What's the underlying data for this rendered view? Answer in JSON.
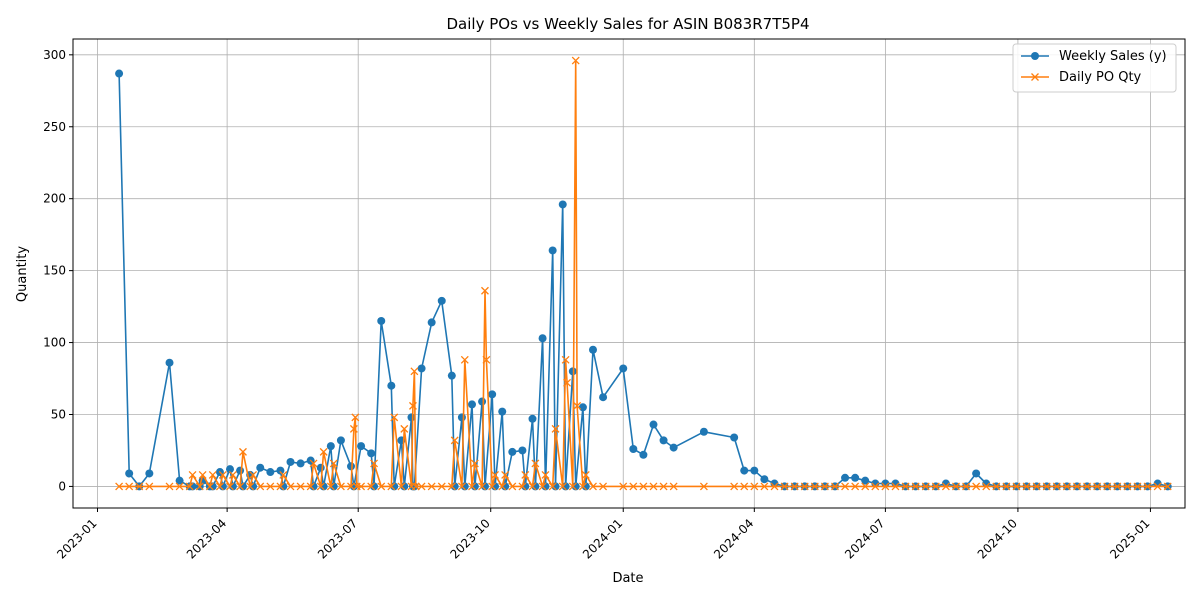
{
  "chart_data": {
    "type": "line",
    "title": "Daily POs vs Weekly Sales for ASIN B083R7T5P4",
    "xlabel": "Date",
    "ylabel": "Quantity",
    "xlim": [
      "2022-12-15",
      "2025-01-25"
    ],
    "ylim": [
      -15,
      311
    ],
    "x_ticks": [
      {
        "date": "2023-01-01",
        "label": "2023-01"
      },
      {
        "date": "2023-04-01",
        "label": "2023-04"
      },
      {
        "date": "2023-07-01",
        "label": "2023-07"
      },
      {
        "date": "2023-10-01",
        "label": "2023-10"
      },
      {
        "date": "2024-01-01",
        "label": "2024-01"
      },
      {
        "date": "2024-04-01",
        "label": "2024-04"
      },
      {
        "date": "2024-07-01",
        "label": "2024-07"
      },
      {
        "date": "2024-10-01",
        "label": "2024-10"
      },
      {
        "date": "2025-01-01",
        "label": "2025-01"
      }
    ],
    "y_ticks": [
      0,
      50,
      100,
      150,
      200,
      250,
      300
    ],
    "grid": true,
    "legend_position": "top-right",
    "colors": {
      "weekly_sales": "#1f77b4",
      "daily_po": "#ff7f0e"
    },
    "series": [
      {
        "name": "Weekly Sales (y)",
        "marker": "circle",
        "points": [
          [
            "2023-01-16",
            287
          ],
          [
            "2023-01-23",
            9
          ],
          [
            "2023-01-30",
            0
          ],
          [
            "2023-02-06",
            9
          ],
          [
            "2023-02-20",
            86
          ],
          [
            "2023-02-27",
            4
          ],
          [
            "2023-03-06",
            0
          ],
          [
            "2023-03-08",
            0
          ],
          [
            "2023-03-13",
            0
          ],
          [
            "2023-03-15",
            4
          ],
          [
            "2023-03-20",
            0
          ],
          [
            "2023-03-22",
            0
          ],
          [
            "2023-03-27",
            10
          ],
          [
            "2023-03-29",
            0
          ],
          [
            "2023-04-03",
            12
          ],
          [
            "2023-04-05",
            0
          ],
          [
            "2023-04-10",
            11
          ],
          [
            "2023-04-12",
            0
          ],
          [
            "2023-04-17",
            8
          ],
          [
            "2023-04-19",
            0
          ],
          [
            "2023-04-24",
            13
          ],
          [
            "2023-05-01",
            10
          ],
          [
            "2023-05-08",
            11
          ],
          [
            "2023-05-10",
            0
          ],
          [
            "2023-05-15",
            17
          ],
          [
            "2023-05-22",
            16
          ],
          [
            "2023-05-29",
            18
          ],
          [
            "2023-05-31",
            0
          ],
          [
            "2023-06-05",
            13
          ],
          [
            "2023-06-07",
            0
          ],
          [
            "2023-06-12",
            28
          ],
          [
            "2023-06-14",
            0
          ],
          [
            "2023-06-19",
            32
          ],
          [
            "2023-06-26",
            14
          ],
          [
            "2023-06-28",
            0
          ],
          [
            "2023-07-03",
            28
          ],
          [
            "2023-07-10",
            23
          ],
          [
            "2023-07-12",
            0
          ],
          [
            "2023-07-17",
            115
          ],
          [
            "2023-07-24",
            70
          ],
          [
            "2023-07-26",
            0
          ],
          [
            "2023-07-31",
            32
          ],
          [
            "2023-08-02",
            0
          ],
          [
            "2023-08-07",
            48
          ],
          [
            "2023-08-08",
            0
          ],
          [
            "2023-08-09",
            0
          ],
          [
            "2023-08-14",
            82
          ],
          [
            "2023-08-21",
            114
          ],
          [
            "2023-08-28",
            129
          ],
          [
            "2023-09-04",
            77
          ],
          [
            "2023-09-06",
            0
          ],
          [
            "2023-09-11",
            48
          ],
          [
            "2023-09-13",
            0
          ],
          [
            "2023-09-18",
            57
          ],
          [
            "2023-09-20",
            0
          ],
          [
            "2023-09-25",
            59
          ],
          [
            "2023-09-27",
            0
          ],
          [
            "2023-10-02",
            64
          ],
          [
            "2023-10-04",
            0
          ],
          [
            "2023-10-09",
            52
          ],
          [
            "2023-10-11",
            0
          ],
          [
            "2023-10-16",
            24
          ],
          [
            "2023-10-23",
            25
          ],
          [
            "2023-10-25",
            0
          ],
          [
            "2023-10-30",
            47
          ],
          [
            "2023-11-01",
            0
          ],
          [
            "2023-11-06",
            103
          ],
          [
            "2023-11-08",
            0
          ],
          [
            "2023-11-13",
            164
          ],
          [
            "2023-11-15",
            0
          ],
          [
            "2023-11-20",
            196
          ],
          [
            "2023-11-22",
            0
          ],
          [
            "2023-11-27",
            80
          ],
          [
            "2023-11-29",
            0
          ],
          [
            "2023-12-04",
            55
          ],
          [
            "2023-12-06",
            0
          ],
          [
            "2023-12-11",
            95
          ],
          [
            "2023-12-18",
            62
          ],
          [
            "2024-01-01",
            82
          ],
          [
            "2024-01-08",
            26
          ],
          [
            "2024-01-15",
            22
          ],
          [
            "2024-01-22",
            43
          ],
          [
            "2024-01-29",
            32
          ],
          [
            "2024-02-05",
            27
          ],
          [
            "2024-02-26",
            38
          ],
          [
            "2024-03-18",
            34
          ],
          [
            "2024-03-25",
            11
          ],
          [
            "2024-04-01",
            11
          ],
          [
            "2024-04-08",
            5
          ],
          [
            "2024-04-15",
            2
          ],
          [
            "2024-04-22",
            0
          ],
          [
            "2024-04-29",
            0
          ],
          [
            "2024-05-06",
            0
          ],
          [
            "2024-05-13",
            0
          ],
          [
            "2024-05-20",
            0
          ],
          [
            "2024-05-27",
            0
          ],
          [
            "2024-06-03",
            6
          ],
          [
            "2024-06-10",
            6
          ],
          [
            "2024-06-17",
            4
          ],
          [
            "2024-06-24",
            2
          ],
          [
            "2024-07-01",
            2
          ],
          [
            "2024-07-08",
            2
          ],
          [
            "2024-07-15",
            0
          ],
          [
            "2024-07-22",
            0
          ],
          [
            "2024-07-29",
            0
          ],
          [
            "2024-08-05",
            0
          ],
          [
            "2024-08-12",
            2
          ],
          [
            "2024-08-19",
            0
          ],
          [
            "2024-08-26",
            0
          ],
          [
            "2024-09-02",
            9
          ],
          [
            "2024-09-09",
            2
          ],
          [
            "2024-09-16",
            0
          ],
          [
            "2024-09-23",
            0
          ],
          [
            "2024-09-30",
            0
          ],
          [
            "2024-10-07",
            0
          ],
          [
            "2024-10-14",
            0
          ],
          [
            "2024-10-21",
            0
          ],
          [
            "2024-10-28",
            0
          ],
          [
            "2024-11-04",
            0
          ],
          [
            "2024-11-11",
            0
          ],
          [
            "2024-11-18",
            0
          ],
          [
            "2024-11-25",
            0
          ],
          [
            "2024-12-02",
            0
          ],
          [
            "2024-12-09",
            0
          ],
          [
            "2024-12-16",
            0
          ],
          [
            "2024-12-23",
            0
          ],
          [
            "2024-12-30",
            0
          ],
          [
            "2025-01-06",
            2
          ],
          [
            "2025-01-13",
            0
          ]
        ]
      },
      {
        "name": "Daily PO Qty",
        "marker": "x",
        "points": [
          [
            "2023-01-16",
            0
          ],
          [
            "2023-01-23",
            0
          ],
          [
            "2023-01-30",
            0
          ],
          [
            "2023-02-06",
            0
          ],
          [
            "2023-02-20",
            0
          ],
          [
            "2023-02-27",
            0
          ],
          [
            "2023-03-06",
            0
          ],
          [
            "2023-03-08",
            8
          ],
          [
            "2023-03-13",
            0
          ],
          [
            "2023-03-15",
            8
          ],
          [
            "2023-03-20",
            0
          ],
          [
            "2023-03-22",
            8
          ],
          [
            "2023-03-27",
            0
          ],
          [
            "2023-03-29",
            8
          ],
          [
            "2023-04-03",
            0
          ],
          [
            "2023-04-05",
            8
          ],
          [
            "2023-04-10",
            0
          ],
          [
            "2023-04-12",
            24
          ],
          [
            "2023-04-17",
            0
          ],
          [
            "2023-04-19",
            8
          ],
          [
            "2023-04-24",
            0
          ],
          [
            "2023-05-01",
            0
          ],
          [
            "2023-05-08",
            0
          ],
          [
            "2023-05-10",
            8
          ],
          [
            "2023-05-15",
            0
          ],
          [
            "2023-05-22",
            0
          ],
          [
            "2023-05-29",
            0
          ],
          [
            "2023-05-31",
            16
          ],
          [
            "2023-06-05",
            0
          ],
          [
            "2023-06-07",
            24
          ],
          [
            "2023-06-12",
            0
          ],
          [
            "2023-06-14",
            16
          ],
          [
            "2023-06-19",
            0
          ],
          [
            "2023-06-26",
            0
          ],
          [
            "2023-06-28",
            40
          ],
          [
            "2023-06-29",
            48
          ],
          [
            "2023-06-30",
            0
          ],
          [
            "2023-07-03",
            0
          ],
          [
            "2023-07-10",
            0
          ],
          [
            "2023-07-12",
            16
          ],
          [
            "2023-07-17",
            0
          ],
          [
            "2023-07-24",
            0
          ],
          [
            "2023-07-26",
            48
          ],
          [
            "2023-07-31",
            0
          ],
          [
            "2023-08-02",
            40
          ],
          [
            "2023-08-07",
            0
          ],
          [
            "2023-08-08",
            56
          ],
          [
            "2023-08-09",
            80
          ],
          [
            "2023-08-10",
            0
          ],
          [
            "2023-08-14",
            0
          ],
          [
            "2023-08-21",
            0
          ],
          [
            "2023-08-28",
            0
          ],
          [
            "2023-09-04",
            0
          ],
          [
            "2023-09-06",
            32
          ],
          [
            "2023-09-11",
            0
          ],
          [
            "2023-09-13",
            88
          ],
          [
            "2023-09-18",
            0
          ],
          [
            "2023-09-20",
            16
          ],
          [
            "2023-09-25",
            0
          ],
          [
            "2023-09-27",
            136
          ],
          [
            "2023-09-28",
            88
          ],
          [
            "2023-10-02",
            0
          ],
          [
            "2023-10-04",
            8
          ],
          [
            "2023-10-09",
            0
          ],
          [
            "2023-10-11",
            8
          ],
          [
            "2023-10-16",
            0
          ],
          [
            "2023-10-23",
            0
          ],
          [
            "2023-10-25",
            8
          ],
          [
            "2023-10-30",
            0
          ],
          [
            "2023-11-01",
            16
          ],
          [
            "2023-11-06",
            0
          ],
          [
            "2023-11-08",
            8
          ],
          [
            "2023-11-13",
            0
          ],
          [
            "2023-11-15",
            40
          ],
          [
            "2023-11-20",
            0
          ],
          [
            "2023-11-22",
            88
          ],
          [
            "2023-11-23",
            72
          ],
          [
            "2023-11-27",
            0
          ],
          [
            "2023-11-29",
            296
          ],
          [
            "2023-11-30",
            56
          ],
          [
            "2023-12-04",
            0
          ],
          [
            "2023-12-06",
            8
          ],
          [
            "2023-12-11",
            0
          ],
          [
            "2023-12-18",
            0
          ],
          [
            "2024-01-01",
            0
          ],
          [
            "2024-01-08",
            0
          ],
          [
            "2024-01-15",
            0
          ],
          [
            "2024-01-22",
            0
          ],
          [
            "2024-01-29",
            0
          ],
          [
            "2024-02-05",
            0
          ],
          [
            "2024-02-26",
            0
          ],
          [
            "2024-03-18",
            0
          ],
          [
            "2024-03-25",
            0
          ],
          [
            "2024-04-01",
            0
          ],
          [
            "2024-04-08",
            0
          ],
          [
            "2024-04-15",
            0
          ],
          [
            "2024-04-22",
            0
          ],
          [
            "2024-04-29",
            0
          ],
          [
            "2024-05-06",
            0
          ],
          [
            "2024-05-13",
            0
          ],
          [
            "2024-05-20",
            0
          ],
          [
            "2024-05-27",
            0
          ],
          [
            "2024-06-03",
            0
          ],
          [
            "2024-06-10",
            0
          ],
          [
            "2024-06-17",
            0
          ],
          [
            "2024-06-24",
            0
          ],
          [
            "2024-07-01",
            0
          ],
          [
            "2024-07-08",
            0
          ],
          [
            "2024-07-15",
            0
          ],
          [
            "2024-07-22",
            0
          ],
          [
            "2024-07-29",
            0
          ],
          [
            "2024-08-05",
            0
          ],
          [
            "2024-08-12",
            0
          ],
          [
            "2024-08-19",
            0
          ],
          [
            "2024-08-26",
            0
          ],
          [
            "2024-09-02",
            0
          ],
          [
            "2024-09-09",
            0
          ],
          [
            "2024-09-16",
            0
          ],
          [
            "2024-09-23",
            0
          ],
          [
            "2024-09-30",
            0
          ],
          [
            "2024-10-07",
            0
          ],
          [
            "2024-10-14",
            0
          ],
          [
            "2024-10-21",
            0
          ],
          [
            "2024-10-28",
            0
          ],
          [
            "2024-11-04",
            0
          ],
          [
            "2024-11-11",
            0
          ],
          [
            "2024-11-18",
            0
          ],
          [
            "2024-11-25",
            0
          ],
          [
            "2024-12-02",
            0
          ],
          [
            "2024-12-09",
            0
          ],
          [
            "2024-12-16",
            0
          ],
          [
            "2024-12-23",
            0
          ],
          [
            "2024-12-30",
            0
          ],
          [
            "2025-01-06",
            0
          ],
          [
            "2025-01-13",
            0
          ]
        ]
      }
    ]
  }
}
